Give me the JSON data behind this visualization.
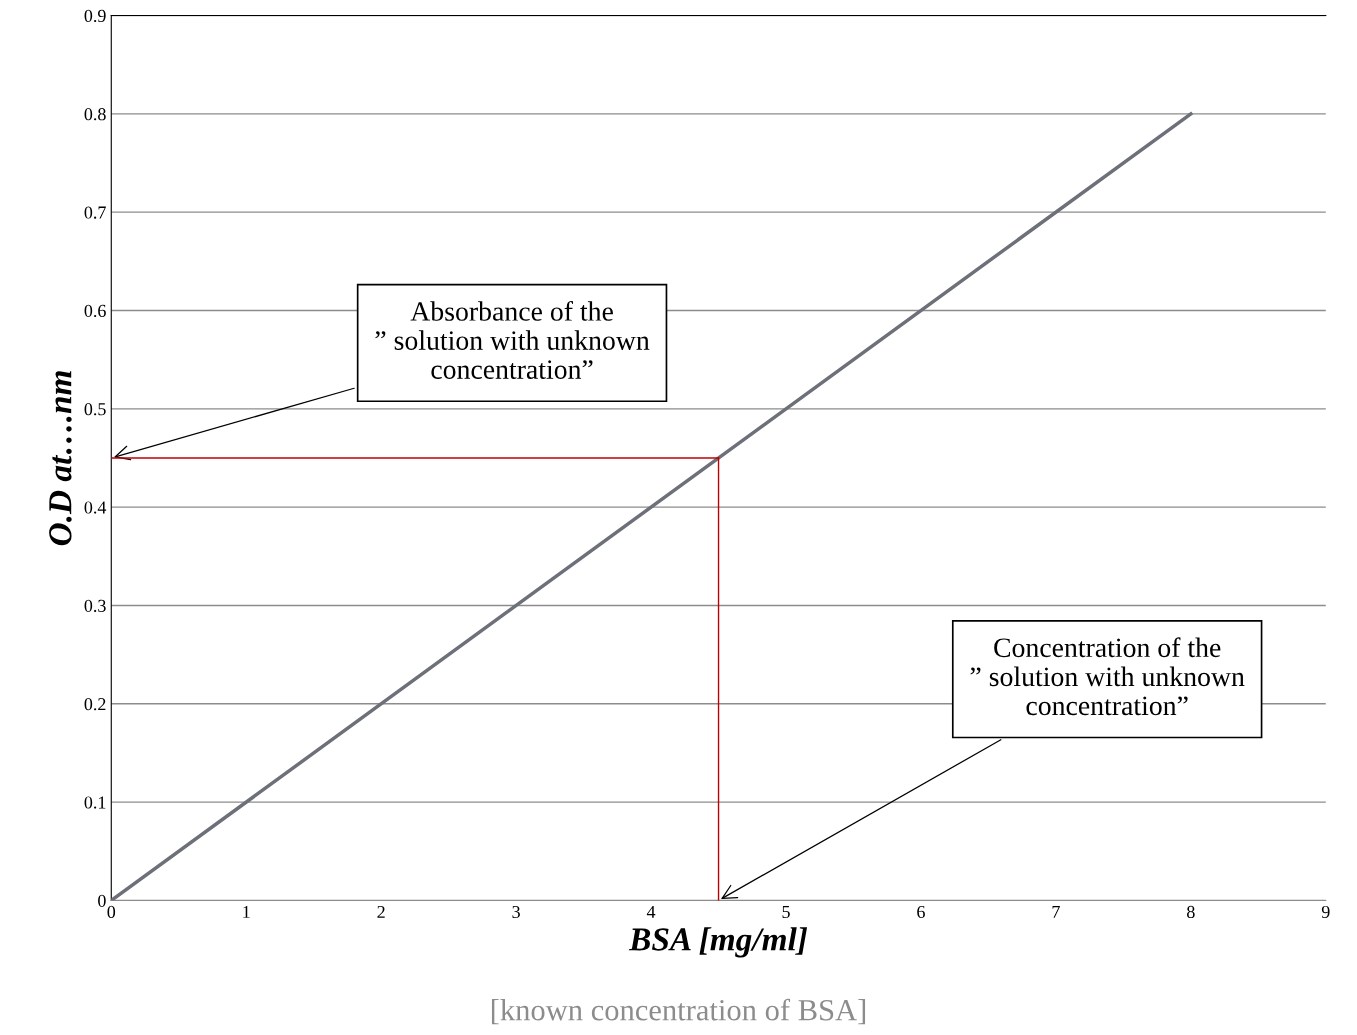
{
  "chart_data": {
    "type": "line",
    "xlabel": "BSA [mg/ml]",
    "ylabel": "O.D at….nm",
    "x": [
      0,
      8
    ],
    "series": [
      {
        "color": "#6d7079",
        "values": [
          0,
          0.8
        ]
      }
    ],
    "ref_lines": [
      {
        "axis": "y",
        "value": 0.45,
        "color": "#c00000",
        "line_style": "solid"
      },
      {
        "axis": "x",
        "value": 4.5,
        "color": "#c00000",
        "line_style": "solid"
      }
    ],
    "xlim": [
      0,
      9
    ],
    "xticks": [
      0,
      1,
      2,
      3,
      4,
      5,
      6,
      7,
      8,
      9
    ],
    "ylim": [
      0,
      0.9
    ],
    "yticks": [
      0,
      0.1,
      0.2,
      0.3,
      0.4,
      0.5,
      0.6,
      0.7,
      0.8,
      0.9
    ],
    "grid": "y",
    "legend": false,
    "marker": "none",
    "line_style": "solid",
    "annotations": [
      {
        "text": "Absorbance of the\n” solution with unknown\nconcentration”",
        "x": 0,
        "y": 0.45
      },
      {
        "text": "Concentration of the\n” solution with unknown\nconcentration”",
        "x": 4.5,
        "y": 0
      },
      "[known concentration of BSA]"
    ]
  }
}
